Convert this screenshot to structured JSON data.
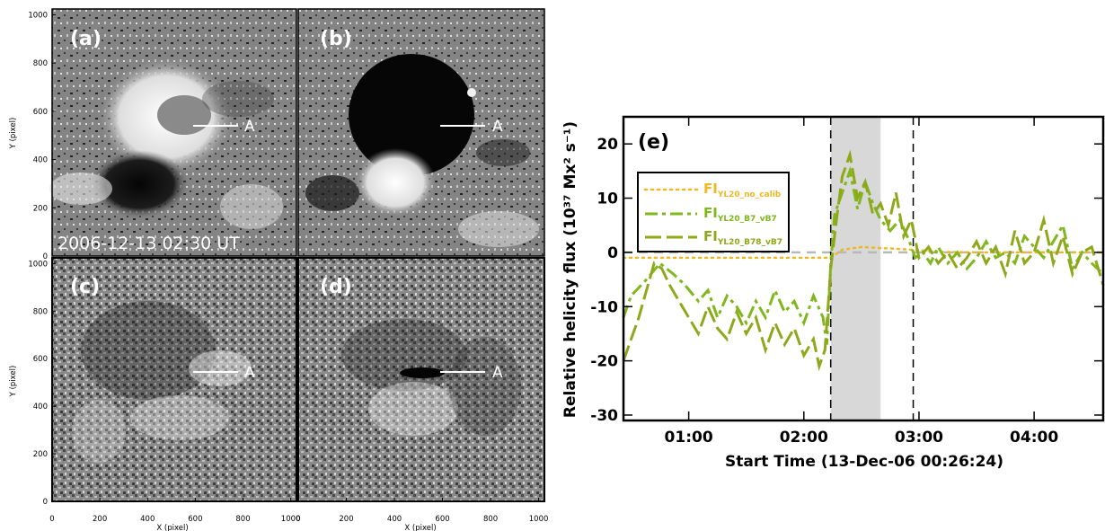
{
  "panels": {
    "a": {
      "tag": "(a)",
      "timestamp": "2006-12-13 02:30 UT",
      "marker": "A"
    },
    "b": {
      "tag": "(b)",
      "marker": "A"
    },
    "c": {
      "tag": "(c)",
      "marker": "A"
    },
    "d": {
      "tag": "(d)",
      "marker": "A"
    }
  },
  "map_axes": {
    "xlabel": "X (pixel)",
    "ylabel": "Y (pixel)",
    "ticks": [
      "0",
      "200",
      "400",
      "600",
      "800",
      "1000"
    ]
  },
  "chart_data": {
    "type": "line",
    "panel_tag": "(e)",
    "xlabel": "Start Time (13-Dec-06 00:26:24)",
    "ylabel": "Relative helicity flux (10³⁷ Mx² s⁻¹)",
    "x_ticks": [
      "01:00",
      "02:00",
      "03:00",
      "04:00"
    ],
    "x_range": [
      "00:26",
      "04:36"
    ],
    "ylim": [
      -31,
      25
    ],
    "y_ticks": [
      -30,
      -20,
      -10,
      0,
      10,
      20
    ],
    "shaded_interval": [
      "02:14",
      "02:40"
    ],
    "vertical_dashed_lines": [
      "02:14",
      "02:57"
    ],
    "zero_line": 0,
    "legend_placement": "upper-left",
    "series": [
      {
        "name": "FI",
        "subscript": "YL20_no_calib",
        "style": "dotted",
        "color": "#f2b622",
        "x": [
          "00:26",
          "00:40",
          "01:00",
          "01:20",
          "01:40",
          "02:00",
          "02:14",
          "02:20",
          "02:30",
          "02:40",
          "02:57",
          "03:10",
          "03:30",
          "04:00",
          "04:36"
        ],
        "y": [
          -1.0,
          -1.0,
          -1.0,
          -1.0,
          -1.0,
          -1.0,
          -1.0,
          0.5,
          1.0,
          0.8,
          0.5,
          0.1,
          0.0,
          0.0,
          0.0
        ]
      },
      {
        "name": "FI",
        "subscript": "YL20_B7_vB7",
        "style": "dash-dot",
        "color": "#7fb81c",
        "x": [
          "00:26",
          "00:30",
          "00:38",
          "00:45",
          "00:52",
          "00:58",
          "01:05",
          "01:10",
          "01:15",
          "01:20",
          "01:25",
          "01:30",
          "01:35",
          "01:40",
          "01:45",
          "01:50",
          "01:55",
          "02:00",
          "02:05",
          "02:10",
          "02:12",
          "02:14",
          "02:16",
          "02:20",
          "02:24",
          "02:28",
          "02:32",
          "02:36",
          "02:40",
          "02:45",
          "02:50",
          "02:55",
          "02:58",
          "03:02",
          "03:06",
          "03:10",
          "03:15",
          "03:20",
          "03:25",
          "03:30",
          "03:35",
          "03:40",
          "03:45",
          "03:50",
          "03:55",
          "04:00",
          "04:05",
          "04:10",
          "04:15",
          "04:20",
          "04:25",
          "04:30",
          "04:36"
        ],
        "y": [
          -12,
          -8,
          -5,
          -2,
          -4,
          -6,
          -9,
          -7,
          -12,
          -8,
          -10,
          -13,
          -9,
          -12,
          -7,
          -11,
          -9,
          -13,
          -8,
          -12,
          -17,
          -2,
          7,
          11,
          15,
          8,
          13,
          9,
          6,
          4,
          6,
          2,
          -1,
          0,
          -2,
          1,
          -2,
          0,
          -3,
          -1,
          2,
          -1,
          0,
          -2,
          3,
          1,
          -1,
          2,
          5,
          -3,
          0,
          -2,
          -4
        ]
      },
      {
        "name": "FI",
        "subscript": "YL20_B78_vB7",
        "style": "long-dash",
        "color": "#8fa81a",
        "x": [
          "00:26",
          "00:30",
          "00:34",
          "00:38",
          "00:42",
          "00:46",
          "00:50",
          "00:55",
          "01:00",
          "01:05",
          "01:10",
          "01:15",
          "01:20",
          "01:25",
          "01:30",
          "01:35",
          "01:40",
          "01:45",
          "01:50",
          "01:55",
          "02:00",
          "02:05",
          "02:08",
          "02:11",
          "02:14",
          "02:17",
          "02:20",
          "02:24",
          "02:28",
          "02:32",
          "02:36",
          "02:40",
          "02:44",
          "02:48",
          "02:52",
          "02:56",
          "03:00",
          "03:05",
          "03:10",
          "03:15",
          "03:20",
          "03:25",
          "03:30",
          "03:35",
          "03:40",
          "03:45",
          "03:50",
          "03:55",
          "04:00",
          "04:05",
          "04:10",
          "04:15",
          "04:20",
          "04:25",
          "04:30",
          "04:36"
        ],
        "y": [
          -20,
          -16,
          -12,
          -7,
          -2,
          -3,
          -6,
          -9,
          -12,
          -15,
          -10,
          -14,
          -16,
          -11,
          -15,
          -12,
          -18,
          -13,
          -17,
          -14,
          -19,
          -16,
          -21,
          -18,
          -3,
          6,
          14,
          18,
          10,
          13,
          7,
          9,
          5,
          11,
          3,
          6,
          -1,
          1,
          -2,
          0,
          -3,
          -1,
          2,
          -2,
          1,
          -4,
          4,
          -2,
          0,
          6,
          -2,
          3,
          -4,
          0,
          1,
          -6
        ]
      }
    ]
  }
}
